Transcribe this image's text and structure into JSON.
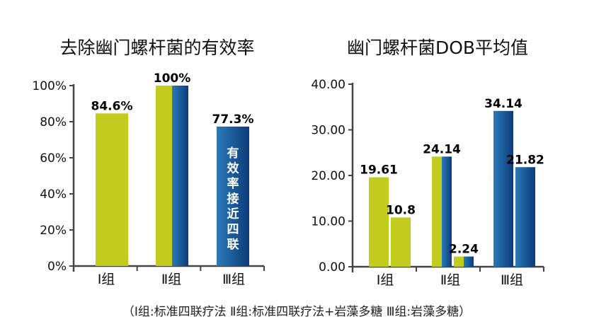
{
  "colors": {
    "green": "#c2cc1e",
    "blue_light": "#2a7ab8",
    "blue_dark": "#0d3b7a",
    "axis": "#444444"
  },
  "footnote": "（Ⅰ组:标准四联疗法  Ⅱ组:标准四联疗法+岩藻多糖  Ⅲ组:岩藻多糖）",
  "chart_data": [
    {
      "type": "bar",
      "title": "去除幽门螺杆菌的有效率",
      "ylim": [
        0,
        100
      ],
      "yticks": [
        "0%",
        "20%",
        "40%",
        "60%",
        "80%",
        "100%"
      ],
      "categories": [
        "Ⅰ组",
        "Ⅱ组",
        "Ⅲ组"
      ],
      "bars": [
        {
          "category": "Ⅰ组",
          "value": 84.6,
          "label": "84.6%",
          "fill": "green"
        },
        {
          "category": "Ⅱ组",
          "value": 100,
          "label": "100%",
          "fill": "split"
        },
        {
          "category": "Ⅲ组",
          "value": 77.3,
          "label": "77.3%",
          "fill": "blue"
        }
      ],
      "annotation": [
        "有",
        "效",
        "率",
        "接",
        "近",
        "四",
        "联"
      ],
      "grid": false
    },
    {
      "type": "bar",
      "title": "幽门螺杆菌DOB平均值",
      "ylim": [
        0,
        40
      ],
      "yticks": [
        "0.00",
        "10.00",
        "20.00",
        "30.00",
        "40.00"
      ],
      "categories": [
        "Ⅰ组",
        "Ⅱ组",
        "Ⅲ组"
      ],
      "bars": [
        {
          "category": "Ⅰ组",
          "value": 19.61,
          "label": "19.61",
          "fill": "green"
        },
        {
          "category": "Ⅰ组",
          "value": 10.8,
          "label": "10.8",
          "fill": "green"
        },
        {
          "category": "Ⅱ组",
          "value": 24.14,
          "label": "24.14",
          "fill": "split"
        },
        {
          "category": "Ⅱ组",
          "value": 2.24,
          "label": "2.24",
          "fill": "split"
        },
        {
          "category": "Ⅲ组",
          "value": 34.14,
          "label": "34.14",
          "fill": "blue"
        },
        {
          "category": "Ⅲ组",
          "value": 21.82,
          "label": "21.82",
          "fill": "blue"
        }
      ],
      "grid": false
    }
  ]
}
